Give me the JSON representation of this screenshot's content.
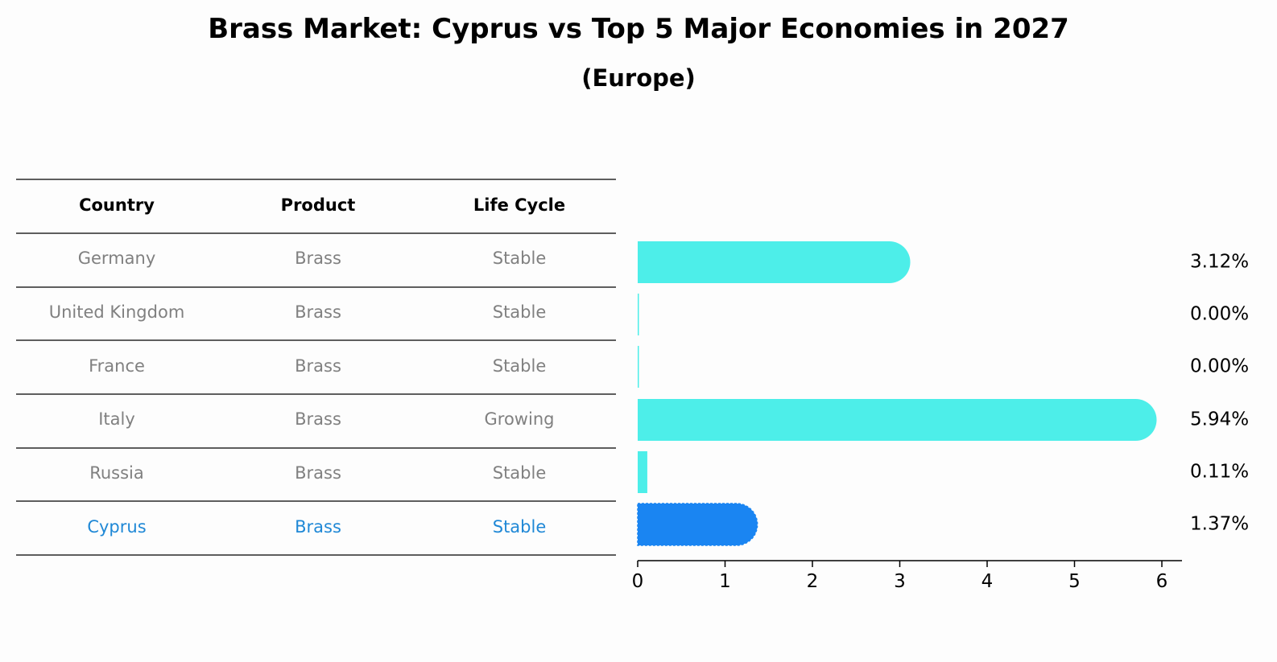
{
  "title": "Brass Market: Cyprus vs Top 5 Major Economies in 2027",
  "subtitle": "(Europe)",
  "table": {
    "headers": [
      "Country",
      "Product",
      "Life Cycle"
    ],
    "rows": [
      [
        "Germany",
        "Brass",
        "Stable"
      ],
      [
        "United Kingdom",
        "Brass",
        "Stable"
      ],
      [
        "France",
        "Brass",
        "Stable"
      ],
      [
        "Italy",
        "Brass",
        "Growing"
      ],
      [
        "Russia",
        "Brass",
        "Stable"
      ],
      [
        "Cyprus",
        "Brass",
        "Stable"
      ]
    ],
    "highlight_row": 5
  },
  "colors": {
    "bar": "#4deee9",
    "highlight_bar": "#1a85f2",
    "highlight_text": "#1f88d6",
    "muted_text": "#808080"
  },
  "chart_data": {
    "type": "bar",
    "orientation": "horizontal",
    "categories": [
      "Germany",
      "United Kingdom",
      "France",
      "Italy",
      "Russia",
      "Cyprus"
    ],
    "values": [
      3.12,
      0.0,
      0.0,
      5.94,
      0.11,
      1.37
    ],
    "value_labels": [
      "3.12%",
      "0.00%",
      "0.00%",
      "5.94%",
      "0.11%",
      "1.37%"
    ],
    "highlight": "Cyprus",
    "xlim": [
      0,
      6.25
    ],
    "xticks": [
      0,
      1,
      2,
      3,
      4,
      5,
      6
    ],
    "xtick_labels": [
      "0",
      "1",
      "2",
      "3",
      "4",
      "5",
      "6"
    ],
    "title": "Brass Market: Cyprus vs Top 5 Major Economies in 2027",
    "subtitle": "(Europe)",
    "xlabel": "",
    "ylabel": "",
    "grid": false
  }
}
